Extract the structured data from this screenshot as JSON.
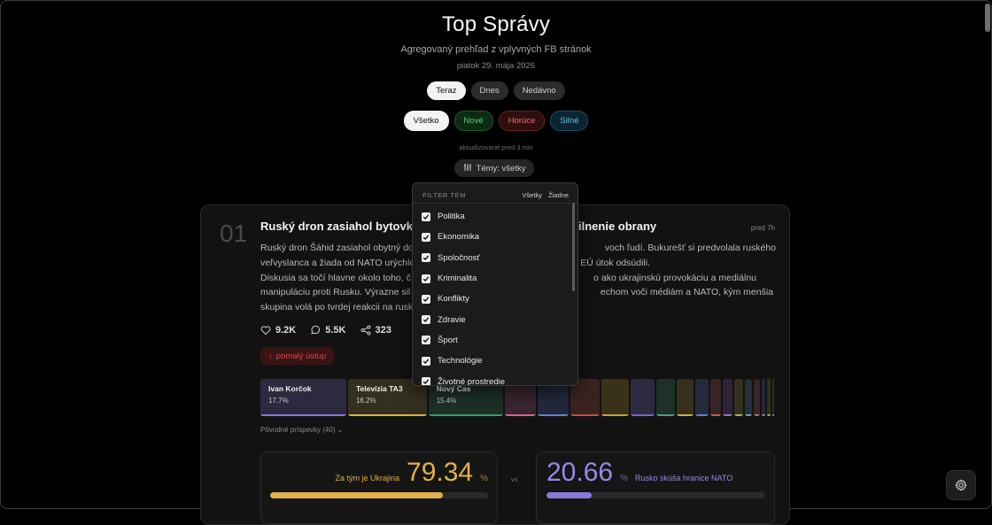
{
  "header": {
    "title": "Top Správy",
    "subtitle": "Agregovaný prehľad z vplyvných FB stránok",
    "date": "piatok 29. mája 2026"
  },
  "tabs": [
    {
      "label": "Teraz",
      "active": true
    },
    {
      "label": "Dnes",
      "active": false
    },
    {
      "label": "Nedávno",
      "active": false
    }
  ],
  "filters": [
    {
      "label": "Všetko",
      "active": true
    },
    {
      "label": "Nové"
    },
    {
      "label": "Horúce"
    },
    {
      "label": "Silné"
    }
  ],
  "updated": "aktualizované pred 3 min",
  "topics_button": {
    "label": "Témy: všetky",
    "icon": "sliders-icon"
  },
  "topic_filter": {
    "heading": "FILTER TÉM",
    "all_label": "Všetky",
    "none_label": "Žiadne",
    "items": [
      {
        "label": "Politika",
        "checked": true
      },
      {
        "label": "Ekonomika",
        "checked": true
      },
      {
        "label": "Spoločnosť",
        "checked": true
      },
      {
        "label": "Kriminalita",
        "checked": true
      },
      {
        "label": "Konflikty",
        "checked": true
      },
      {
        "label": "Zdravie",
        "checked": true
      },
      {
        "label": "Šport",
        "checked": true
      },
      {
        "label": "Technológie",
        "checked": true
      },
      {
        "label": "Životné prostredie",
        "checked": true
      }
    ]
  },
  "story": {
    "rank": "01",
    "headline_start": "Ruský dron zasiahol bytovku v",
    "headline_end": "ilnenie obrany",
    "time_ago": "pred 7h",
    "body_lines": [
      "Ruský dron Šáhid zasiahol obytný do",
      "veľvyslanca a žiada od NATO urýchle",
      "Diskusia sa točí hlavne okolo toho, č",
      "manipuláciu proti Rusku. Výrazne sil",
      "skupina volá po tvrdej reakcii na rusk"
    ],
    "body_lines_right": [
      "voch ľudí. Bukurešť si predvolala ruského",
      "brany. Aliancia a EÚ útok odsúdili.",
      "o ako ukrajinskú provokáciu a mediálnu",
      "echom voči médiám a NATO, kým menšia",
      ""
    ],
    "likes": "9.2K",
    "comments": "5.5K",
    "shares": "323",
    "trend_label": "pomalý ústup",
    "trend_color": "#d44a4a",
    "sources": [
      {
        "name": "Ivan Korčok",
        "pct": "17.7%",
        "share": 17.7,
        "color": "#8b79d8",
        "bg": "#2c2a3e"
      },
      {
        "name": "Televízia TA3",
        "pct": "16.2%",
        "share": 16.2,
        "color": "#d9b24a",
        "bg": "#34301f"
      },
      {
        "name": "Nový Čas",
        "pct": "15.4%",
        "share": 15.4,
        "color": "#3f9b6b",
        "bg": "#1e2f26"
      },
      {
        "name": "",
        "pct": "",
        "share": 6.4,
        "color": "#d06a8e",
        "bg": "#3a2530"
      },
      {
        "name": "",
        "pct": "",
        "share": 6.4,
        "color": "#5d86c9",
        "bg": "#23293a"
      },
      {
        "name": "",
        "pct": "",
        "share": 6.0,
        "color": "#c0504a",
        "bg": "#3a2220"
      },
      {
        "name": "",
        "pct": "",
        "share": 5.6,
        "color": "#c9a040",
        "bg": "#3a3218"
      },
      {
        "name": "",
        "pct": "",
        "share": 5.0,
        "color": "#7b68c8",
        "bg": "#2d2a40"
      },
      {
        "name": "",
        "pct": "",
        "share": 3.8,
        "color": "#4f9e80",
        "bg": "#1e3029"
      },
      {
        "name": "",
        "pct": "",
        "share": 3.4,
        "color": "#c9b24a",
        "bg": "#34301c"
      },
      {
        "name": "",
        "pct": "",
        "share": 2.8,
        "color": "#6b7fc9",
        "bg": "#242a3c"
      },
      {
        "name": "",
        "pct": "",
        "share": 2.2,
        "color": "#c06060",
        "bg": "#382424"
      },
      {
        "name": "",
        "pct": "",
        "share": 2.0,
        "color": "#9075c9",
        "bg": "#2c2538"
      },
      {
        "name": "",
        "pct": "",
        "share": 1.8,
        "color": "#b8b04a",
        "bg": "#33311c"
      },
      {
        "name": "",
        "pct": "",
        "share": 1.6,
        "color": "#6aa0d0",
        "bg": "#22303c"
      },
      {
        "name": "",
        "pct": "",
        "share": 1.2,
        "color": "#c07070",
        "bg": "#382626"
      },
      {
        "name": "",
        "pct": "",
        "share": 0.8,
        "color": "#8080c0",
        "bg": "#28283a"
      },
      {
        "name": "",
        "pct": "",
        "share": 0.6,
        "color": "#c0a050",
        "bg": "#33301e"
      },
      {
        "name": "",
        "pct": "",
        "share": 0.4,
        "color": "#60a080",
        "bg": "#20302a"
      }
    ],
    "original_posts": "Pôvodné príspevky (40)",
    "vote_left": {
      "label": "Za tým je Ukrajina",
      "value": "79.34",
      "unit": "%",
      "fill": 79.34
    },
    "vote_right": {
      "label": "Rusko skúša hranice NATO",
      "value": "20.66",
      "unit": "%",
      "fill": 20.66
    },
    "vs_label": "vs"
  },
  "settings_icon": "gear-icon"
}
